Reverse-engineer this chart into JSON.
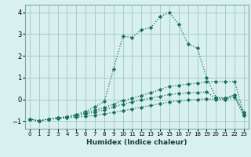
{
  "title": "",
  "xlabel": "Humidex (Indice chaleur)",
  "bg_color": "#d8f0ee",
  "grid_color": "#a8ccc8",
  "line_color": "#1a6e60",
  "xlim": [
    -0.5,
    23.5
  ],
  "ylim": [
    -1.35,
    4.35
  ],
  "yticks": [
    -1,
    0,
    1,
    2,
    3,
    4
  ],
  "xticks": [
    0,
    1,
    2,
    3,
    4,
    5,
    6,
    7,
    8,
    9,
    10,
    11,
    12,
    13,
    14,
    15,
    16,
    17,
    18,
    19,
    20,
    21,
    22,
    23
  ],
  "lines": [
    {
      "x": [
        0,
        1,
        2,
        3,
        4,
        5,
        6,
        7,
        8,
        9,
        10,
        11,
        12,
        13,
        14,
        15,
        16,
        17,
        18,
        19,
        20,
        21,
        22,
        23
      ],
      "y": [
        -0.9,
        -1.0,
        -0.9,
        -0.85,
        -0.8,
        -0.7,
        -0.55,
        -0.35,
        -0.1,
        1.4,
        2.9,
        2.85,
        3.2,
        3.3,
        3.8,
        4.0,
        3.45,
        2.55,
        2.35,
        1.0,
        0.1,
        0.05,
        0.2,
        -0.6
      ]
    },
    {
      "x": [
        0,
        1,
        2,
        3,
        4,
        5,
        6,
        7,
        8,
        9,
        10,
        11,
        12,
        13,
        14,
        15,
        16,
        17,
        18,
        19,
        20,
        21,
        22,
        23
      ],
      "y": [
        -0.9,
        -1.0,
        -0.9,
        -0.85,
        -0.8,
        -0.72,
        -0.62,
        -0.5,
        -0.38,
        -0.22,
        -0.05,
        0.05,
        0.18,
        0.3,
        0.45,
        0.6,
        0.65,
        0.7,
        0.75,
        0.8,
        0.82,
        0.82,
        0.82,
        -0.65
      ]
    },
    {
      "x": [
        0,
        1,
        2,
        3,
        4,
        5,
        6,
        7,
        8,
        9,
        10,
        11,
        12,
        13,
        14,
        15,
        16,
        17,
        18,
        19,
        20,
        21,
        22,
        23
      ],
      "y": [
        -0.9,
        -1.0,
        -0.9,
        -0.85,
        -0.82,
        -0.75,
        -0.67,
        -0.58,
        -0.48,
        -0.35,
        -0.22,
        -0.12,
        -0.02,
        0.06,
        0.14,
        0.22,
        0.27,
        0.3,
        0.32,
        0.34,
        0.05,
        0.05,
        0.2,
        -0.72
      ]
    },
    {
      "x": [
        0,
        1,
        2,
        3,
        4,
        5,
        6,
        7,
        8,
        9,
        10,
        11,
        12,
        13,
        14,
        15,
        16,
        17,
        18,
        19,
        20,
        21,
        22,
        23
      ],
      "y": [
        -0.9,
        -1.0,
        -0.9,
        -0.87,
        -0.85,
        -0.82,
        -0.78,
        -0.73,
        -0.67,
        -0.6,
        -0.52,
        -0.44,
        -0.36,
        -0.28,
        -0.2,
        -0.12,
        -0.07,
        -0.03,
        0.0,
        0.03,
        0.0,
        0.0,
        0.1,
        -0.75
      ]
    }
  ]
}
